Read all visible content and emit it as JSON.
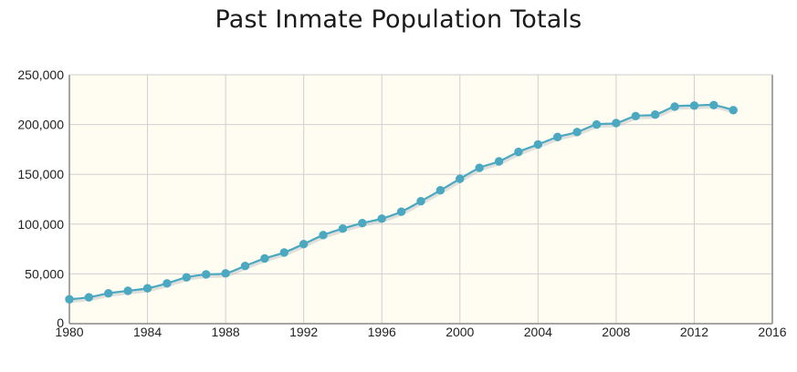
{
  "chart_data": {
    "type": "line",
    "title": "Past Inmate Population Totals",
    "xlabel": "",
    "ylabel": "",
    "xlim": [
      1980,
      2016
    ],
    "ylim": [
      0,
      250000
    ],
    "x_ticks": [
      1980,
      1984,
      1988,
      1992,
      1996,
      2000,
      2004,
      2008,
      2012,
      2016
    ],
    "y_ticks": [
      0,
      50000,
      100000,
      150000,
      200000,
      250000
    ],
    "y_tick_labels": [
      "0",
      "50,000",
      "100,000",
      "150,000",
      "200,000",
      "250,000"
    ],
    "grid": true,
    "legend": "none",
    "colors": {
      "line": "#4aa8c0",
      "marker": "#4aa8c0",
      "plot_bg": "#fffcf2",
      "grid": "#d0d0d0",
      "axis": "#888888"
    },
    "series": [
      {
        "x": [
          1980,
          1981,
          1982,
          1983,
          1984,
          1985,
          1986,
          1987,
          1988,
          1989,
          1990,
          1991,
          1992,
          1993,
          1994,
          1995,
          1996,
          1997,
          1998,
          1999,
          2000,
          2001,
          2002,
          2003,
          2004,
          2005,
          2006,
          2007,
          2008,
          2009,
          2010,
          2011,
          2012,
          2013,
          2014
        ],
        "values": [
          24500,
          26500,
          30500,
          33000,
          35500,
          40500,
          46500,
          49500,
          50500,
          58000,
          65500,
          71500,
          80000,
          89000,
          95500,
          101000,
          105500,
          112500,
          123000,
          134000,
          145500,
          156500,
          163000,
          172500,
          180000,
          187500,
          192500,
          200000,
          201500,
          208500,
          210000,
          218000,
          219000,
          219500,
          214500
        ]
      }
    ]
  }
}
